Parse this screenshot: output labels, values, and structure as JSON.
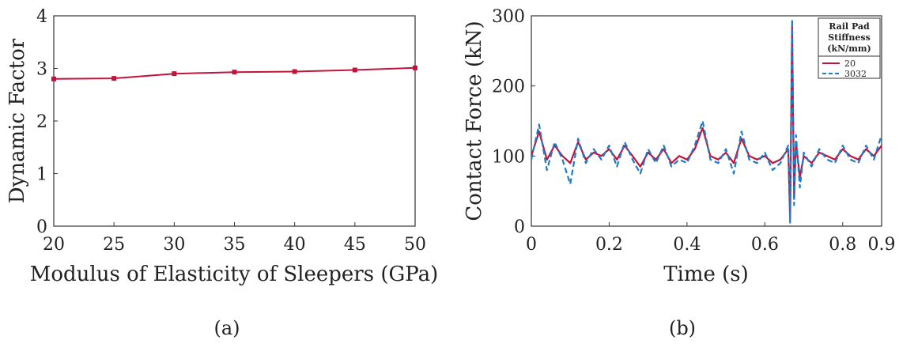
{
  "chart_data": [
    {
      "type": "line",
      "panel_label": "(a)",
      "xlabel": "Modulus of Elasticity of Sleepers (GPa)",
      "ylabel": "Dynamic Factor",
      "xlim": [
        20,
        50
      ],
      "ylim": [
        0,
        4
      ],
      "x_ticks": [
        20,
        25,
        30,
        35,
        40,
        45,
        50
      ],
      "y_ticks": [
        0,
        1,
        2,
        3,
        4
      ],
      "grid": false,
      "x": [
        20,
        25,
        30,
        35,
        40,
        45,
        50
      ],
      "series": [
        {
          "values": [
            2.8,
            2.81,
            2.9,
            2.93,
            2.94,
            2.97,
            3.01
          ]
        }
      ],
      "colors": {
        "series": "#c0143c"
      }
    },
    {
      "type": "line",
      "panel_label": "(b)",
      "xlabel": "Time (s)",
      "ylabel": "Contact Force (kN)",
      "xlim": [
        0,
        0.9
      ],
      "ylim": [
        0,
        300
      ],
      "x_ticks": [
        0,
        0.2,
        0.4,
        0.6,
        0.8,
        0.9
      ],
      "y_ticks": [
        0,
        100,
        200,
        300
      ],
      "grid": false,
      "legend": {
        "title_lines": [
          "Rail Pad",
          "Stiffness",
          "(kN/mm)"
        ],
        "placement": "top-right"
      },
      "series": [
        {
          "name": "20",
          "color": "#c0143c",
          "style": "solid",
          "x": [
            0,
            0.02,
            0.04,
            0.06,
            0.08,
            0.1,
            0.12,
            0.14,
            0.16,
            0.18,
            0.2,
            0.22,
            0.24,
            0.26,
            0.28,
            0.3,
            0.32,
            0.34,
            0.36,
            0.38,
            0.4,
            0.42,
            0.44,
            0.46,
            0.48,
            0.5,
            0.52,
            0.54,
            0.56,
            0.58,
            0.6,
            0.62,
            0.64,
            0.66,
            0.665,
            0.67,
            0.675,
            0.68,
            0.69,
            0.7,
            0.72,
            0.74,
            0.76,
            0.78,
            0.8,
            0.82,
            0.84,
            0.86,
            0.88,
            0.9
          ],
          "y": [
            100,
            135,
            95,
            115,
            100,
            90,
            120,
            95,
            105,
            100,
            110,
            95,
            115,
            100,
            85,
            105,
            95,
            110,
            90,
            100,
            95,
            110,
            140,
            100,
            95,
            105,
            90,
            125,
            100,
            95,
            100,
            90,
            95,
            110,
            10,
            285,
            40,
            120,
            70,
            100,
            90,
            105,
            100,
            95,
            110,
            100,
            95,
            110,
            100,
            115
          ]
        },
        {
          "name": "3032",
          "color": "#1f7bc4",
          "style": "dashed",
          "x": [
            0,
            0.02,
            0.04,
            0.06,
            0.08,
            0.1,
            0.12,
            0.14,
            0.16,
            0.18,
            0.2,
            0.22,
            0.24,
            0.26,
            0.28,
            0.3,
            0.32,
            0.34,
            0.36,
            0.38,
            0.4,
            0.42,
            0.44,
            0.46,
            0.48,
            0.5,
            0.52,
            0.54,
            0.56,
            0.58,
            0.6,
            0.62,
            0.64,
            0.66,
            0.665,
            0.67,
            0.675,
            0.68,
            0.69,
            0.7,
            0.72,
            0.74,
            0.76,
            0.78,
            0.8,
            0.82,
            0.84,
            0.86,
            0.88,
            0.9
          ],
          "y": [
            95,
            145,
            80,
            120,
            95,
            60,
            125,
            90,
            110,
            95,
            115,
            85,
            120,
            95,
            75,
            110,
            90,
            115,
            85,
            95,
            90,
            115,
            150,
            95,
            90,
            110,
            75,
            135,
            95,
            90,
            105,
            80,
            90,
            115,
            5,
            295,
            30,
            130,
            55,
            105,
            85,
            110,
            95,
            90,
            115,
            95,
            90,
            115,
            95,
            130
          ]
        }
      ]
    }
  ]
}
